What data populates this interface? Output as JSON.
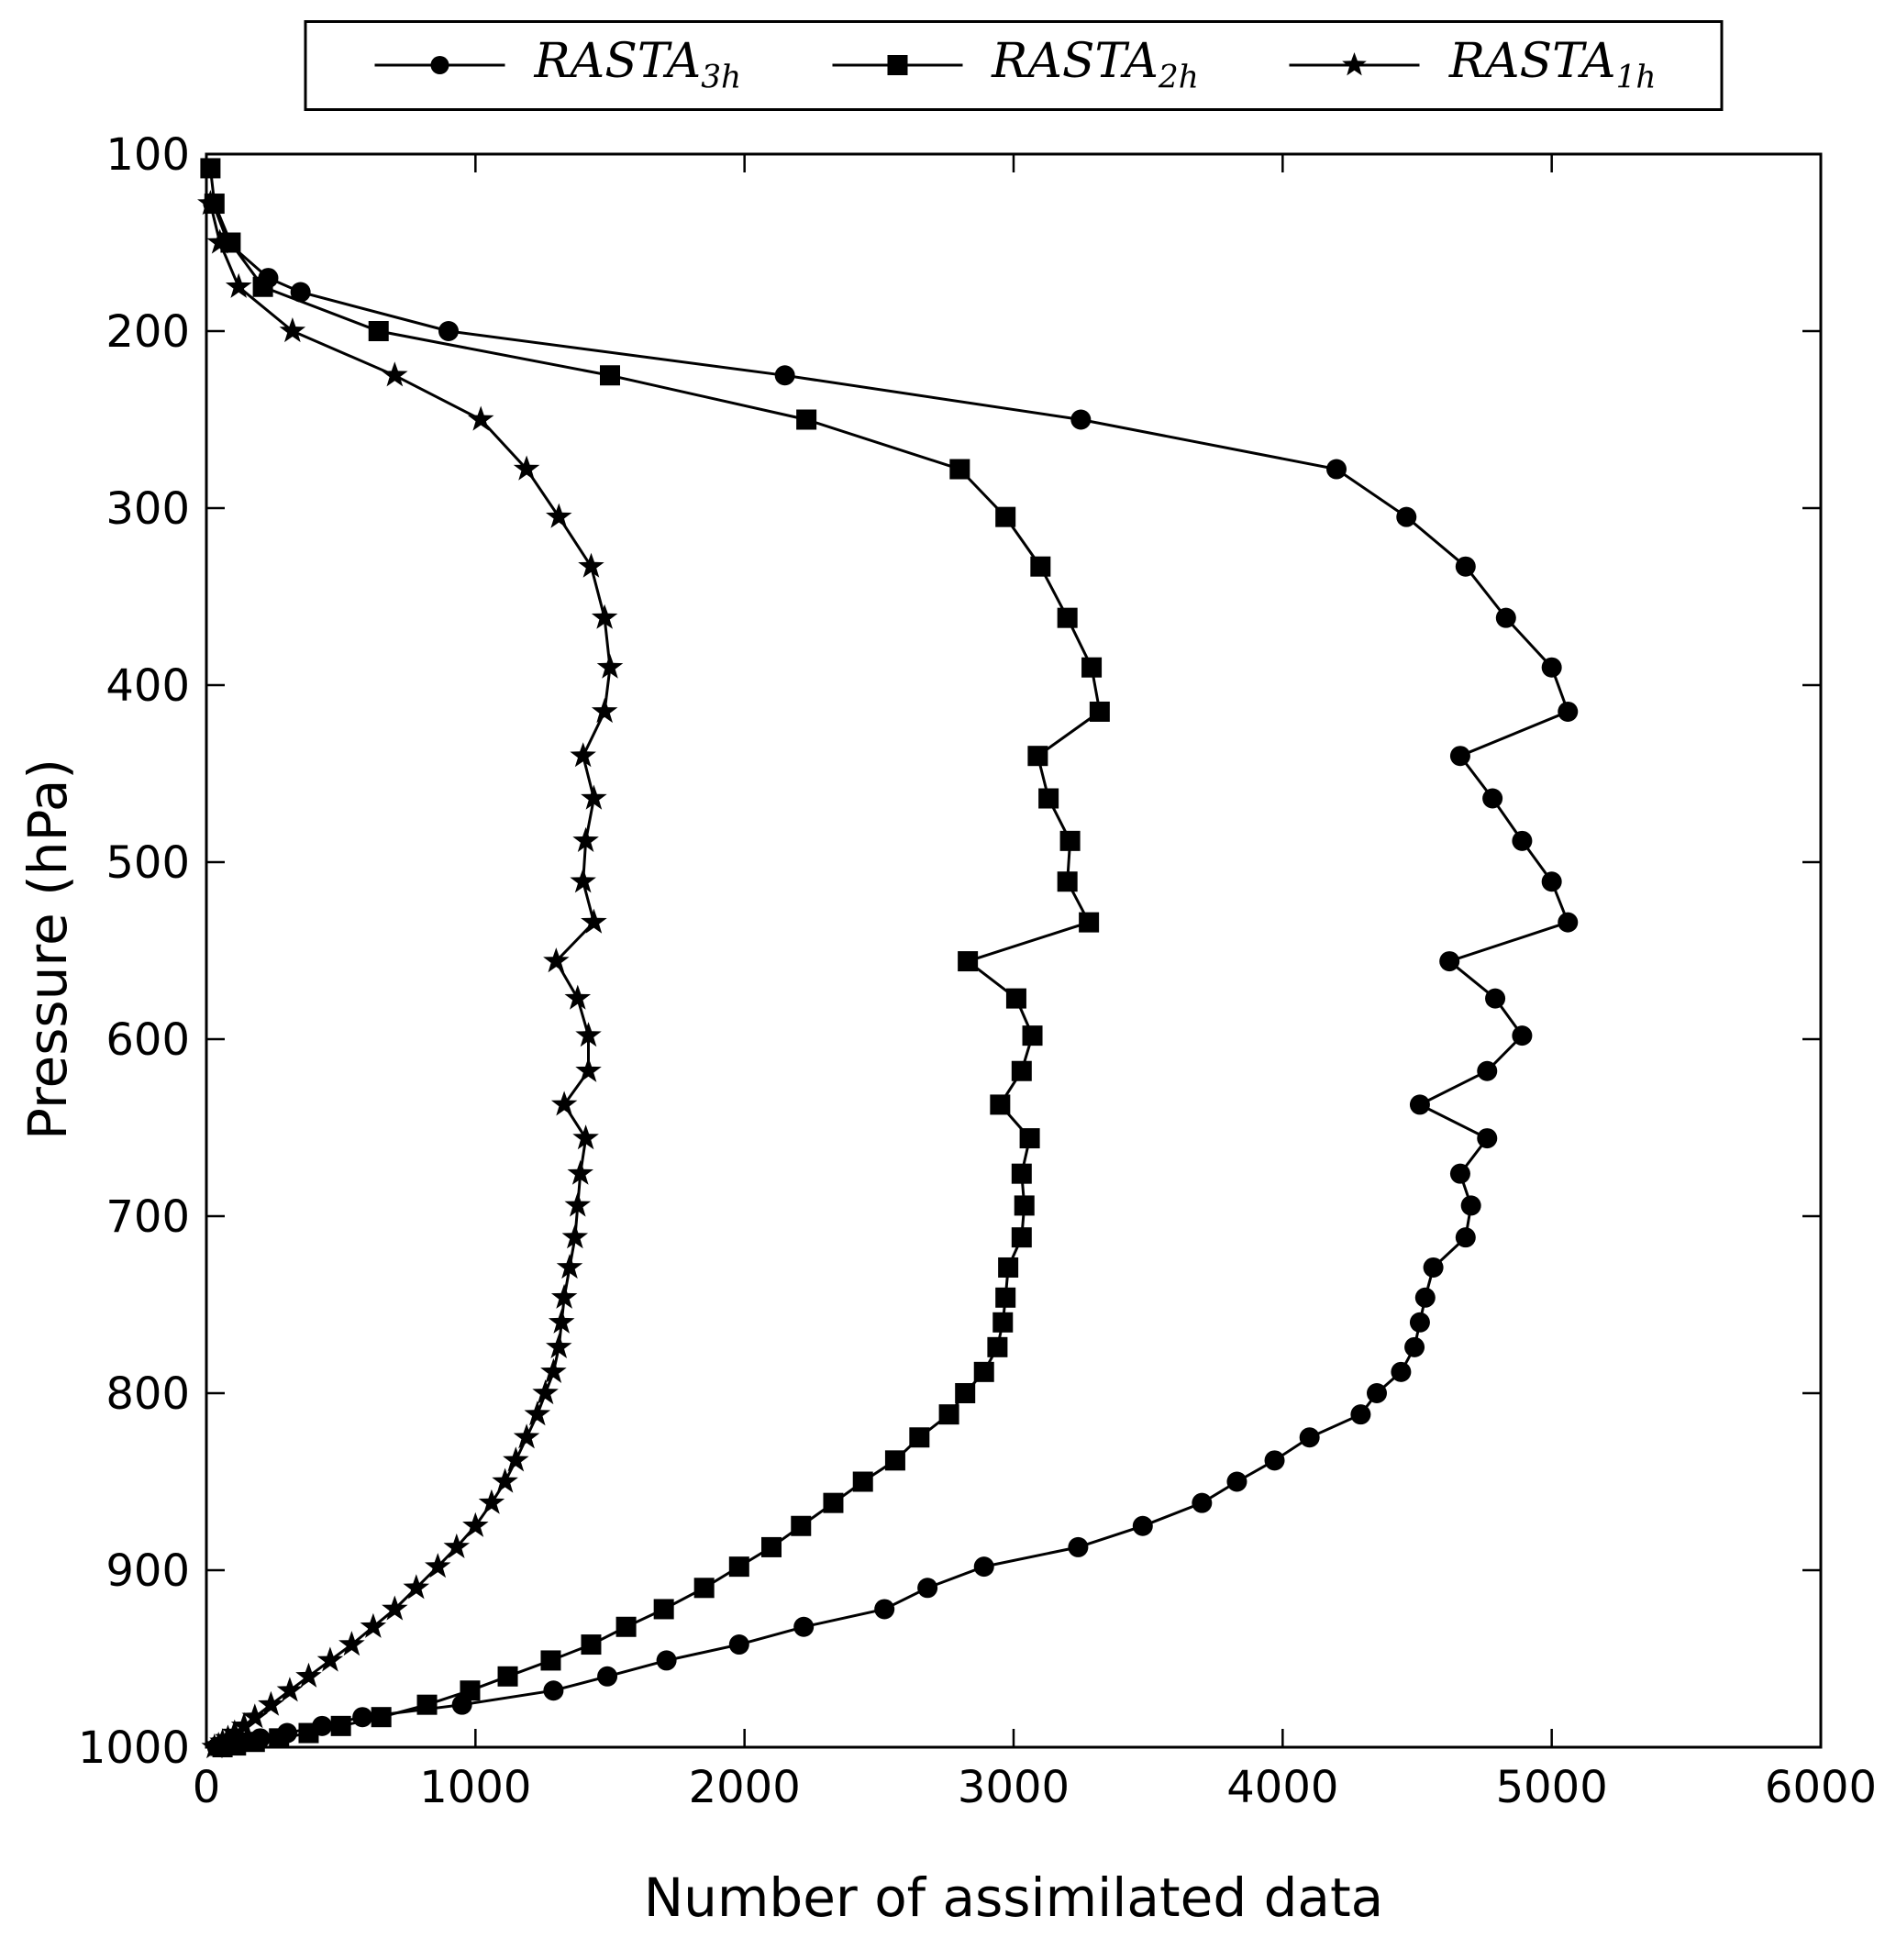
{
  "legend": {
    "entries": [
      {
        "label": "RASTA",
        "sub": "3h",
        "marker": "circle"
      },
      {
        "label": "RASTA",
        "sub": "2h",
        "marker": "square"
      },
      {
        "label": "RASTA",
        "sub": "1h",
        "marker": "star"
      }
    ]
  },
  "axes": {
    "xlabel": "Number of assimilated data",
    "ylabel": "Pressure (hPa)",
    "xlim": [
      0,
      6000
    ],
    "ylim": [
      100,
      1000
    ],
    "x_ticks": [
      0,
      1000,
      2000,
      3000,
      4000,
      5000,
      6000
    ],
    "y_ticks": [
      100,
      200,
      300,
      400,
      500,
      600,
      700,
      800,
      900,
      1000
    ],
    "y_inverted": true,
    "grid": false,
    "line_color": "#000000"
  },
  "chart_data": {
    "type": "line",
    "title": "",
    "xlabel": "Number of assimilated data",
    "ylabel": "Pressure (hPa)",
    "xlim": [
      0,
      6000
    ],
    "ylim_pressure_top_to_bottom": [
      100,
      1000
    ],
    "legend_position": "top-center-outside",
    "series": [
      {
        "name": "RASTA_3h",
        "marker": "circle",
        "color": "#000000",
        "points_value_pressure": [
          [
            25,
            128
          ],
          [
            80,
            150
          ],
          [
            230,
            170
          ],
          [
            350,
            178
          ],
          [
            900,
            200
          ],
          [
            2150,
            225
          ],
          [
            3250,
            250
          ],
          [
            4200,
            278
          ],
          [
            4460,
            305
          ],
          [
            4680,
            333
          ],
          [
            4830,
            362
          ],
          [
            5000,
            390
          ],
          [
            5060,
            415
          ],
          [
            4660,
            440
          ],
          [
            4780,
            464
          ],
          [
            4890,
            488
          ],
          [
            5000,
            511
          ],
          [
            5060,
            534
          ],
          [
            4620,
            556
          ],
          [
            4790,
            577
          ],
          [
            4890,
            598
          ],
          [
            4760,
            618
          ],
          [
            4510,
            637
          ],
          [
            4760,
            656
          ],
          [
            4660,
            676
          ],
          [
            4700,
            694
          ],
          [
            4680,
            712
          ],
          [
            4560,
            729
          ],
          [
            4530,
            746
          ],
          [
            4510,
            760
          ],
          [
            4490,
            774
          ],
          [
            4440,
            788
          ],
          [
            4350,
            800
          ],
          [
            4290,
            812
          ],
          [
            4100,
            825
          ],
          [
            3970,
            838
          ],
          [
            3830,
            850
          ],
          [
            3700,
            862
          ],
          [
            3480,
            875
          ],
          [
            3240,
            887
          ],
          [
            2890,
            898
          ],
          [
            2680,
            910
          ],
          [
            2520,
            922
          ],
          [
            2220,
            932
          ],
          [
            1980,
            942
          ],
          [
            1710,
            951
          ],
          [
            1490,
            960
          ],
          [
            1290,
            968
          ],
          [
            950,
            976
          ],
          [
            580,
            983
          ],
          [
            430,
            988
          ],
          [
            300,
            992
          ],
          [
            200,
            995
          ],
          [
            130,
            997
          ],
          [
            70,
            999
          ],
          [
            40,
            1000
          ]
        ]
      },
      {
        "name": "RASTA_2h",
        "marker": "square",
        "color": "#000000",
        "points_value_pressure": [
          [
            15,
            108
          ],
          [
            30,
            128
          ],
          [
            90,
            150
          ],
          [
            210,
            175
          ],
          [
            640,
            200
          ],
          [
            1500,
            225
          ],
          [
            2230,
            250
          ],
          [
            2800,
            278
          ],
          [
            2970,
            305
          ],
          [
            3100,
            333
          ],
          [
            3200,
            362
          ],
          [
            3290,
            390
          ],
          [
            3320,
            415
          ],
          [
            3090,
            440
          ],
          [
            3130,
            464
          ],
          [
            3210,
            488
          ],
          [
            3200,
            511
          ],
          [
            3280,
            534
          ],
          [
            2830,
            556
          ],
          [
            3010,
            577
          ],
          [
            3070,
            598
          ],
          [
            3030,
            618
          ],
          [
            2950,
            637
          ],
          [
            3060,
            656
          ],
          [
            3030,
            676
          ],
          [
            3040,
            694
          ],
          [
            3030,
            712
          ],
          [
            2980,
            729
          ],
          [
            2970,
            746
          ],
          [
            2960,
            760
          ],
          [
            2940,
            774
          ],
          [
            2890,
            788
          ],
          [
            2820,
            800
          ],
          [
            2760,
            812
          ],
          [
            2650,
            825
          ],
          [
            2560,
            838
          ],
          [
            2440,
            850
          ],
          [
            2330,
            862
          ],
          [
            2210,
            875
          ],
          [
            2100,
            887
          ],
          [
            1980,
            898
          ],
          [
            1850,
            910
          ],
          [
            1700,
            922
          ],
          [
            1560,
            932
          ],
          [
            1430,
            942
          ],
          [
            1280,
            951
          ],
          [
            1120,
            960
          ],
          [
            980,
            968
          ],
          [
            820,
            976
          ],
          [
            650,
            983
          ],
          [
            500,
            988
          ],
          [
            380,
            992
          ],
          [
            270,
            995
          ],
          [
            180,
            997
          ],
          [
            110,
            999
          ],
          [
            60,
            1000
          ]
        ]
      },
      {
        "name": "RASTA_1h",
        "marker": "star",
        "color": "#000000",
        "points_value_pressure": [
          [
            15,
            128
          ],
          [
            50,
            150
          ],
          [
            120,
            175
          ],
          [
            320,
            200
          ],
          [
            700,
            225
          ],
          [
            1020,
            250
          ],
          [
            1190,
            278
          ],
          [
            1310,
            305
          ],
          [
            1430,
            333
          ],
          [
            1480,
            362
          ],
          [
            1500,
            390
          ],
          [
            1480,
            415
          ],
          [
            1400,
            440
          ],
          [
            1440,
            464
          ],
          [
            1410,
            488
          ],
          [
            1400,
            511
          ],
          [
            1440,
            534
          ],
          [
            1300,
            556
          ],
          [
            1380,
            577
          ],
          [
            1420,
            598
          ],
          [
            1420,
            618
          ],
          [
            1330,
            637
          ],
          [
            1410,
            656
          ],
          [
            1390,
            676
          ],
          [
            1380,
            694
          ],
          [
            1370,
            712
          ],
          [
            1350,
            729
          ],
          [
            1330,
            746
          ],
          [
            1320,
            760
          ],
          [
            1310,
            774
          ],
          [
            1290,
            788
          ],
          [
            1260,
            800
          ],
          [
            1230,
            812
          ],
          [
            1190,
            825
          ],
          [
            1150,
            838
          ],
          [
            1110,
            850
          ],
          [
            1060,
            862
          ],
          [
            1000,
            875
          ],
          [
            930,
            887
          ],
          [
            860,
            898
          ],
          [
            780,
            910
          ],
          [
            700,
            922
          ],
          [
            620,
            932
          ],
          [
            540,
            942
          ],
          [
            460,
            951
          ],
          [
            380,
            960
          ],
          [
            310,
            968
          ],
          [
            240,
            976
          ],
          [
            180,
            983
          ],
          [
            140,
            988
          ],
          [
            105,
            992
          ],
          [
            80,
            995
          ],
          [
            60,
            997
          ],
          [
            45,
            999
          ],
          [
            30,
            1000
          ]
        ]
      }
    ]
  }
}
